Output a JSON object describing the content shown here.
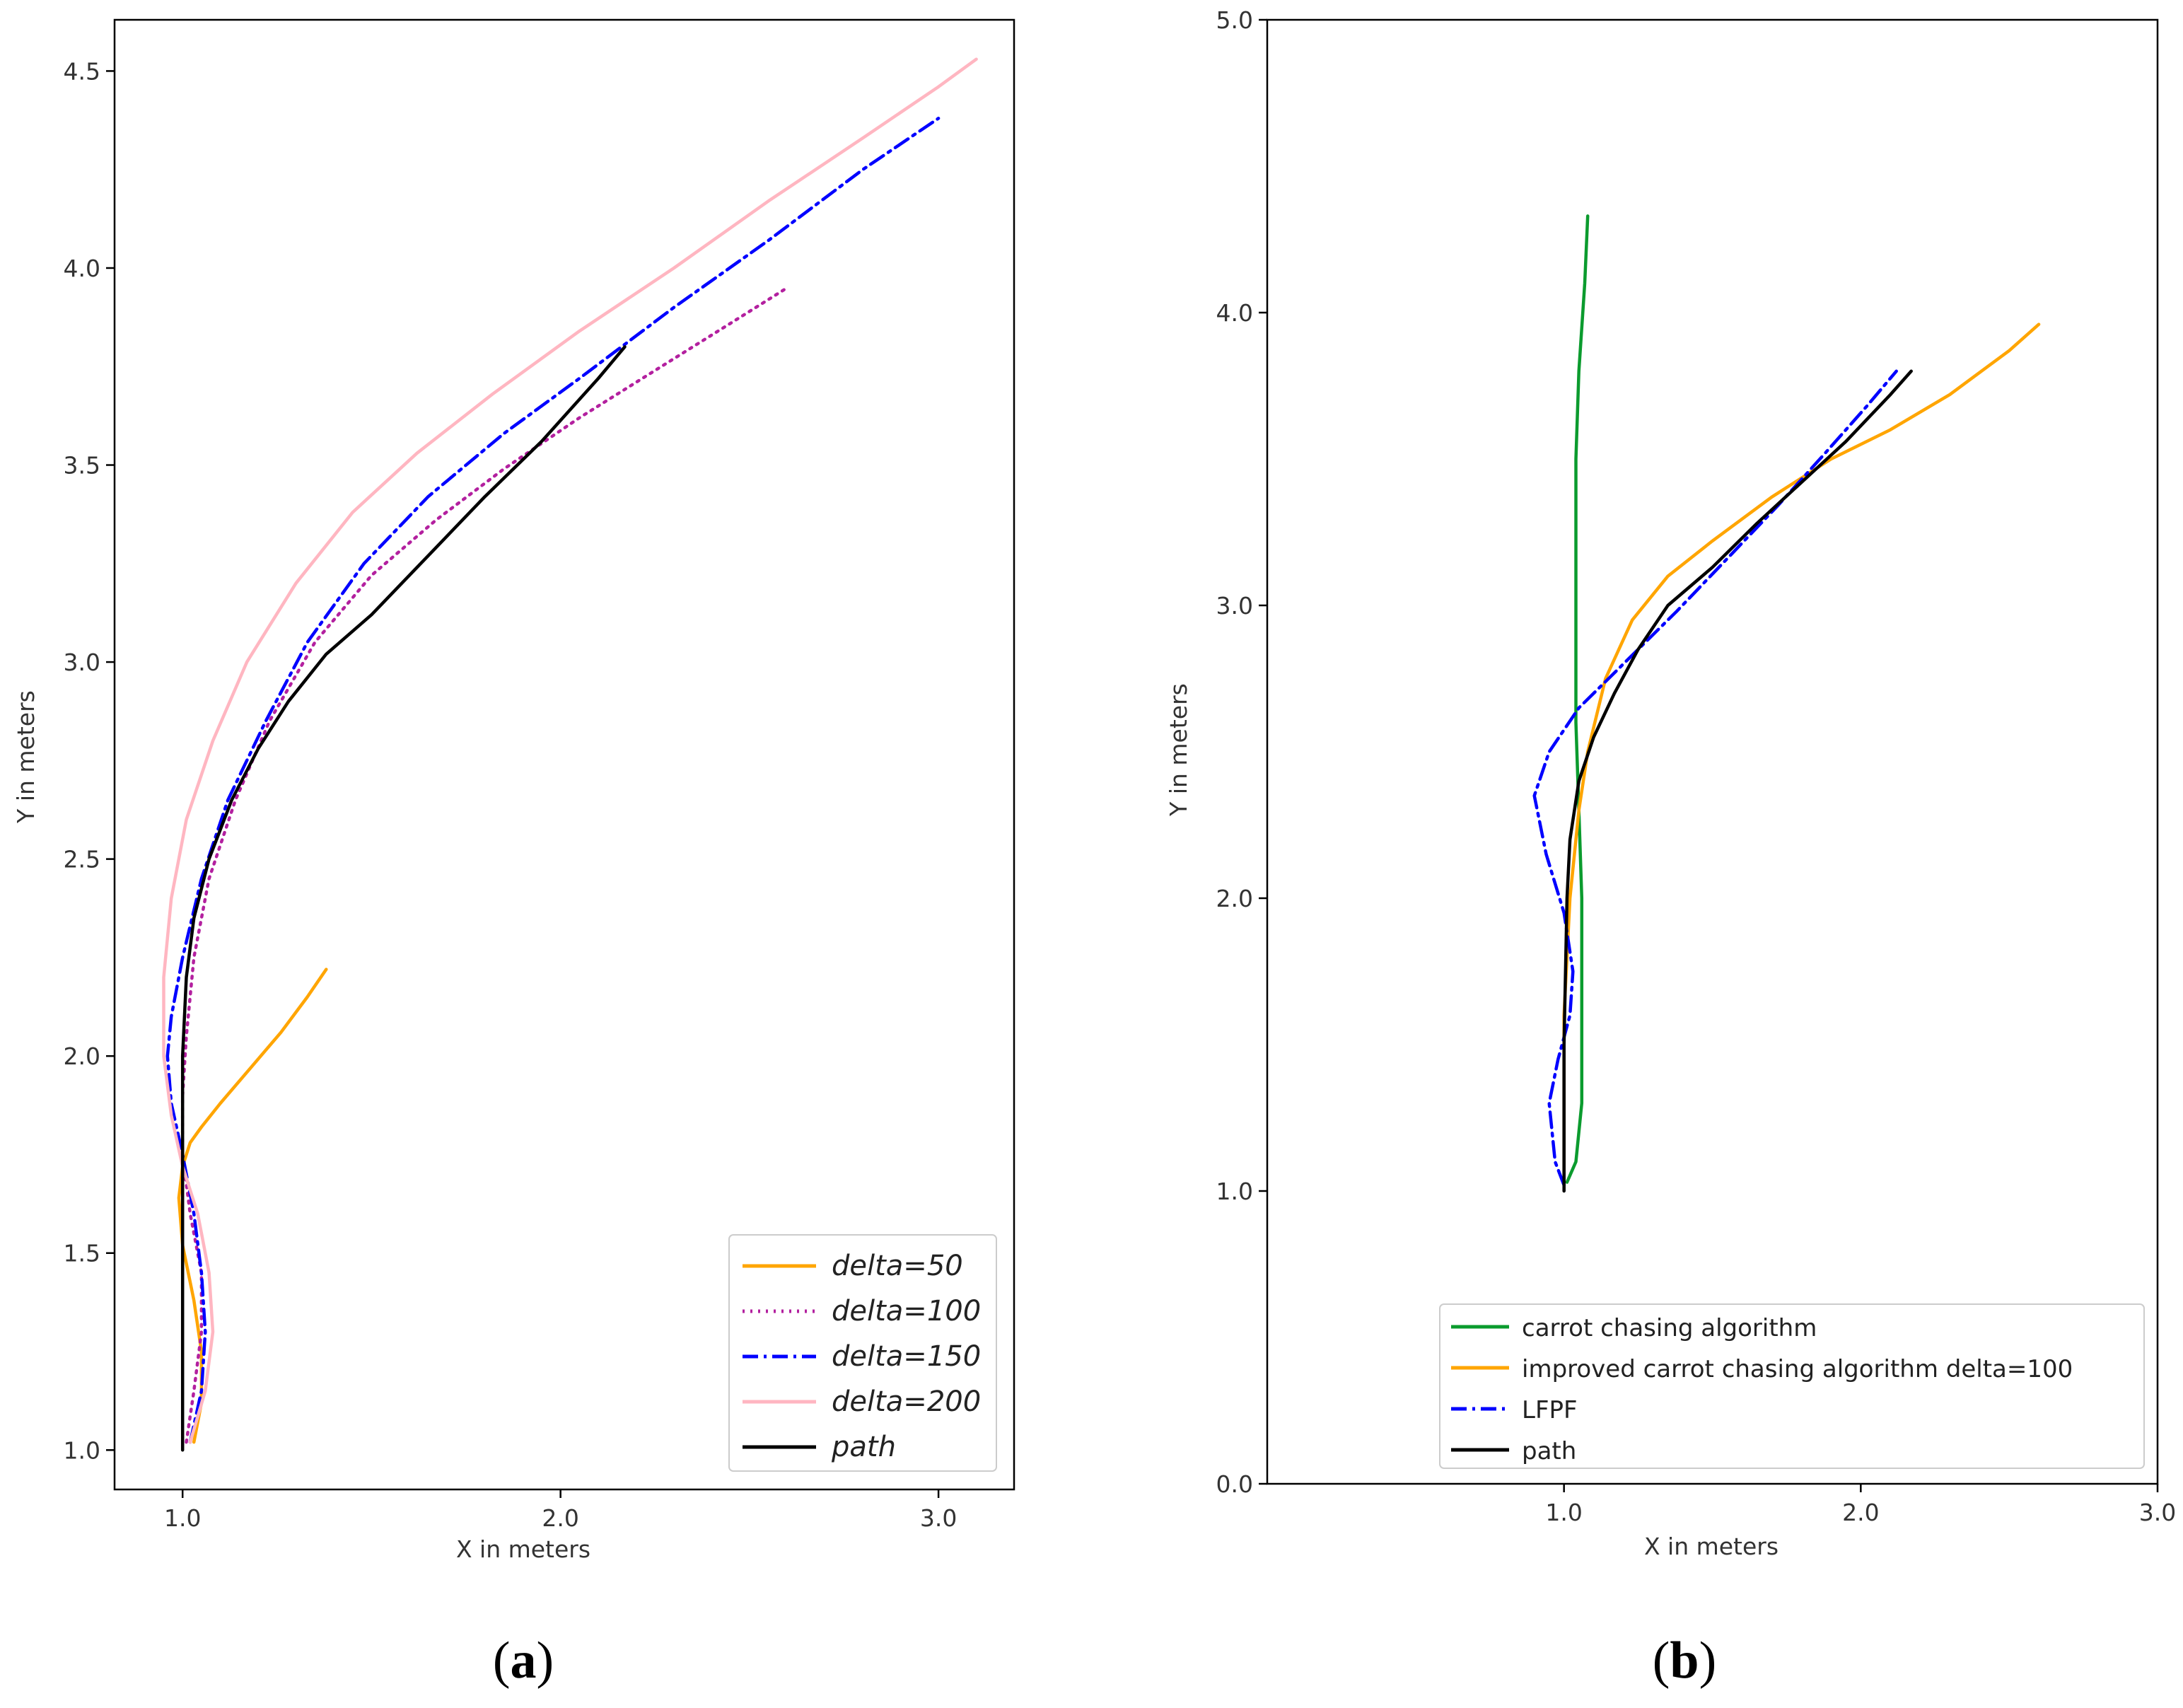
{
  "chart_data": [
    {
      "panel": "a",
      "type": "line",
      "caption_letter": "a",
      "xlabel": "X in meters",
      "ylabel": "Y in meters",
      "xlim": [
        0.82,
        3.2
      ],
      "ylim": [
        0.9,
        4.63
      ],
      "xticks": [
        1.0,
        2.0,
        3.0
      ],
      "xtick_labels": [
        "1.0",
        "2.0",
        "3.0"
      ],
      "yticks": [
        1.0,
        1.5,
        2.0,
        2.5,
        3.0,
        3.5,
        4.0,
        4.5
      ],
      "ytick_labels": [
        "1.0",
        "1.5",
        "2.0",
        "2.5",
        "3.0",
        "3.5",
        "4.0",
        "4.5"
      ],
      "grid": false,
      "legend_position": "bottom-right",
      "series": [
        {
          "name": "delta=50",
          "color": "#FFA500",
          "style": "solid",
          "points": [
            [
              1.03,
              1.02
            ],
            [
              1.05,
              1.12
            ],
            [
              1.05,
              1.25
            ],
            [
              1.03,
              1.38
            ],
            [
              1.0,
              1.52
            ],
            [
              0.99,
              1.64
            ],
            [
              1.0,
              1.72
            ],
            [
              1.02,
              1.78
            ],
            [
              1.05,
              1.82
            ],
            [
              1.1,
              1.88
            ],
            [
              1.18,
              1.97
            ],
            [
              1.26,
              2.06
            ],
            [
              1.33,
              2.15
            ],
            [
              1.38,
              2.22
            ]
          ]
        },
        {
          "name": "delta=100",
          "color": "#B3209F",
          "style": "dotted",
          "points": [
            [
              1.01,
              1.02
            ],
            [
              1.03,
              1.15
            ],
            [
              1.05,
              1.3
            ],
            [
              1.05,
              1.45
            ],
            [
              1.02,
              1.6
            ],
            [
              1.0,
              1.75
            ],
            [
              1.0,
              1.9
            ],
            [
              1.01,
              2.05
            ],
            [
              1.03,
              2.25
            ],
            [
              1.07,
              2.45
            ],
            [
              1.14,
              2.65
            ],
            [
              1.23,
              2.85
            ],
            [
              1.35,
              3.05
            ],
            [
              1.5,
              3.22
            ],
            [
              1.67,
              3.36
            ],
            [
              1.85,
              3.49
            ],
            [
              2.05,
              3.62
            ],
            [
              2.25,
              3.74
            ],
            [
              2.45,
              3.86
            ],
            [
              2.6,
              3.95
            ]
          ]
        },
        {
          "name": "delta=150",
          "color": "#0000FF",
          "style": "dashdot",
          "points": [
            [
              1.02,
              1.02
            ],
            [
              1.05,
              1.15
            ],
            [
              1.06,
              1.3
            ],
            [
              1.05,
              1.45
            ],
            [
              1.03,
              1.6
            ],
            [
              1.0,
              1.75
            ],
            [
              0.97,
              1.88
            ],
            [
              0.96,
              2.0
            ],
            [
              0.97,
              2.1
            ],
            [
              1.0,
              2.25
            ],
            [
              1.05,
              2.45
            ],
            [
              1.12,
              2.65
            ],
            [
              1.22,
              2.85
            ],
            [
              1.33,
              3.05
            ],
            [
              1.48,
              3.25
            ],
            [
              1.65,
              3.42
            ],
            [
              1.85,
              3.58
            ],
            [
              2.05,
              3.72
            ],
            [
              2.3,
              3.9
            ],
            [
              2.55,
              4.07
            ],
            [
              2.8,
              4.25
            ],
            [
              3.0,
              4.38
            ]
          ]
        },
        {
          "name": "delta=200",
          "color": "#FFB6C1",
          "style": "solid",
          "points": [
            [
              1.02,
              1.02
            ],
            [
              1.06,
              1.15
            ],
            [
              1.08,
              1.3
            ],
            [
              1.07,
              1.45
            ],
            [
              1.04,
              1.6
            ],
            [
              1.0,
              1.72
            ],
            [
              0.97,
              1.85
            ],
            [
              0.95,
              2.0
            ],
            [
              0.95,
              2.2
            ],
            [
              0.97,
              2.4
            ],
            [
              1.01,
              2.6
            ],
            [
              1.08,
              2.8
            ],
            [
              1.17,
              3.0
            ],
            [
              1.3,
              3.2
            ],
            [
              1.45,
              3.38
            ],
            [
              1.62,
              3.53
            ],
            [
              1.82,
              3.68
            ],
            [
              2.05,
              3.84
            ],
            [
              2.3,
              4.0
            ],
            [
              2.55,
              4.17
            ],
            [
              2.8,
              4.33
            ],
            [
              3.0,
              4.46
            ],
            [
              3.1,
              4.53
            ]
          ]
        },
        {
          "name": "path",
          "color": "#000000",
          "style": "solid",
          "points": [
            [
              1.0,
              1.0
            ],
            [
              1.0,
              1.5
            ],
            [
              1.0,
              2.0
            ],
            [
              1.01,
              2.2
            ],
            [
              1.03,
              2.35
            ],
            [
              1.07,
              2.5
            ],
            [
              1.13,
              2.65
            ],
            [
              1.2,
              2.78
            ],
            [
              1.28,
              2.9
            ],
            [
              1.38,
              3.02
            ],
            [
              1.5,
              3.12
            ],
            [
              1.65,
              3.27
            ],
            [
              1.8,
              3.42
            ],
            [
              1.95,
              3.56
            ],
            [
              2.1,
              3.72
            ],
            [
              2.17,
              3.8
            ]
          ]
        }
      ]
    },
    {
      "panel": "b",
      "type": "line",
      "caption_letter": "b",
      "xlabel": "X in meters",
      "ylabel": "Y in meters",
      "xlim": [
        0.0,
        3.0
      ],
      "ylim": [
        0.0,
        5.0
      ],
      "xticks": [
        1.0,
        2.0,
        3.0
      ],
      "xtick_labels": [
        "1.0",
        "2.0",
        "3.0"
      ],
      "yticks": [
        0.0,
        1.0,
        2.0,
        3.0,
        4.0,
        5.0
      ],
      "ytick_labels": [
        "0.0",
        "1.0",
        "2.0",
        "3.0",
        "4.0",
        "5.0"
      ],
      "grid": false,
      "legend_position": "bottom-center",
      "series": [
        {
          "name": "carrot chasing algorithm",
          "color": "#0B9B2E",
          "style": "solid",
          "points": [
            [
              1.01,
              1.03
            ],
            [
              1.04,
              1.1
            ],
            [
              1.06,
              1.3
            ],
            [
              1.06,
              1.6
            ],
            [
              1.06,
              2.0
            ],
            [
              1.05,
              2.3
            ],
            [
              1.04,
              2.6
            ],
            [
              1.04,
              2.9
            ],
            [
              1.04,
              3.2
            ],
            [
              1.04,
              3.5
            ],
            [
              1.05,
              3.8
            ],
            [
              1.07,
              4.1
            ],
            [
              1.08,
              4.33
            ]
          ]
        },
        {
          "name": "improved carrot chasing algorithm delta=100",
          "color": "#FFA500",
          "style": "solid",
          "points": [
            [
              1.0,
              1.02
            ],
            [
              1.0,
              1.3
            ],
            [
              1.0,
              1.6
            ],
            [
              1.02,
              2.0
            ],
            [
              1.05,
              2.3
            ],
            [
              1.08,
              2.5
            ],
            [
              1.14,
              2.75
            ],
            [
              1.23,
              2.95
            ],
            [
              1.35,
              3.1
            ],
            [
              1.5,
              3.22
            ],
            [
              1.7,
              3.37
            ],
            [
              1.9,
              3.5
            ],
            [
              2.1,
              3.6
            ],
            [
              2.3,
              3.72
            ],
            [
              2.5,
              3.87
            ],
            [
              2.6,
              3.96
            ]
          ]
        },
        {
          "name": "LFPF",
          "color": "#0000FF",
          "style": "dashdot",
          "points": [
            [
              1.0,
              1.02
            ],
            [
              0.97,
              1.1
            ],
            [
              0.95,
              1.3
            ],
            [
              0.98,
              1.45
            ],
            [
              1.02,
              1.6
            ],
            [
              1.03,
              1.75
            ],
            [
              1.0,
              1.95
            ],
            [
              0.94,
              2.15
            ],
            [
              0.9,
              2.35
            ],
            [
              0.95,
              2.5
            ],
            [
              1.05,
              2.65
            ],
            [
              1.2,
              2.8
            ],
            [
              1.38,
              2.98
            ],
            [
              1.55,
              3.16
            ],
            [
              1.72,
              3.34
            ],
            [
              1.88,
              3.52
            ],
            [
              2.02,
              3.68
            ],
            [
              2.12,
              3.8
            ]
          ]
        },
        {
          "name": "path",
          "color": "#000000",
          "style": "solid",
          "points": [
            [
              1.0,
              1.0
            ],
            [
              1.0,
              1.5
            ],
            [
              1.01,
              2.0
            ],
            [
              1.02,
              2.2
            ],
            [
              1.05,
              2.4
            ],
            [
              1.1,
              2.55
            ],
            [
              1.17,
              2.7
            ],
            [
              1.25,
              2.85
            ],
            [
              1.35,
              3.0
            ],
            [
              1.5,
              3.13
            ],
            [
              1.65,
              3.28
            ],
            [
              1.8,
              3.42
            ],
            [
              1.95,
              3.56
            ],
            [
              2.1,
              3.72
            ],
            [
              2.17,
              3.8
            ]
          ]
        }
      ]
    }
  ]
}
